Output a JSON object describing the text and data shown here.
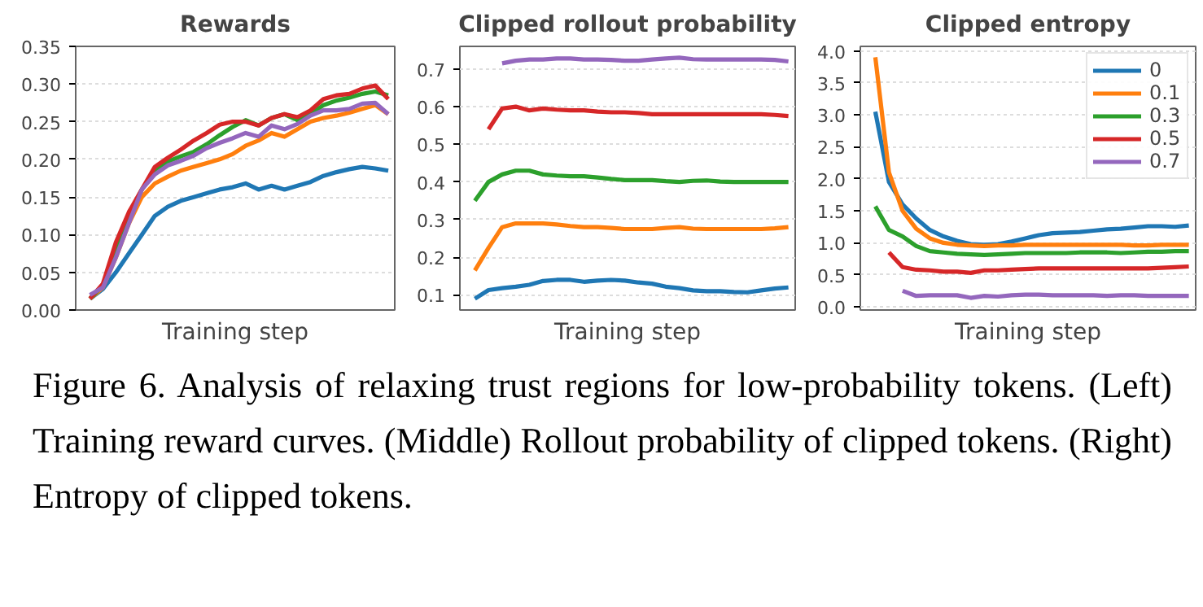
{
  "chart_data": [
    {
      "type": "line",
      "title": "Rewards",
      "xlabel": "Training step",
      "categories": [
        null,
        null,
        null,
        null,
        null,
        null,
        null,
        null,
        null,
        null,
        null,
        null,
        null,
        null,
        null,
        null,
        null,
        null,
        null,
        null,
        null,
        null,
        null,
        null
      ],
      "ylim": [
        0,
        0.35
      ],
      "yticks": [
        {
          "value": 0,
          "label": "0.00"
        },
        {
          "value": 0.05,
          "label": "0.05"
        },
        {
          "value": 0.1,
          "label": "0.10"
        },
        {
          "value": 0.15,
          "label": "0.15"
        },
        {
          "value": 0.2,
          "label": "0.20"
        },
        {
          "value": 0.25,
          "label": "0.25"
        },
        {
          "value": 0.3,
          "label": "0.30"
        },
        {
          "value": 0.35,
          "label": "0.35"
        }
      ],
      "tick_labels": "y",
      "grid": "y",
      "legend": false,
      "series": [
        {
          "color": "#1f77b4",
          "values": [
            0.015,
            0.028,
            0.05,
            0.075,
            0.1,
            0.125,
            0.137,
            0.145,
            0.15,
            0.155,
            0.16,
            0.163,
            0.168,
            0.16,
            0.165,
            0.16,
            0.165,
            0.17,
            0.178,
            0.183,
            0.187,
            0.19,
            0.188,
            0.185
          ]
        },
        {
          "color": "#ff7f0e",
          "values": [
            0.015,
            0.03,
            0.07,
            0.115,
            0.15,
            0.168,
            0.177,
            0.185,
            0.19,
            0.195,
            0.2,
            0.207,
            0.218,
            0.225,
            0.235,
            0.23,
            0.24,
            0.25,
            0.255,
            0.258,
            0.262,
            0.267,
            0.272,
            0.26
          ]
        },
        {
          "color": "#2ca02c",
          "values": [
            0.015,
            0.033,
            0.08,
            0.125,
            0.16,
            0.185,
            0.197,
            0.204,
            0.21,
            0.22,
            0.232,
            0.243,
            0.252,
            0.245,
            0.255,
            0.26,
            0.252,
            0.26,
            0.272,
            0.278,
            0.282,
            0.287,
            0.29,
            0.285
          ]
        },
        {
          "color": "#d62728",
          "values": [
            0.015,
            0.035,
            0.09,
            0.13,
            0.16,
            0.19,
            0.202,
            0.213,
            0.225,
            0.235,
            0.246,
            0.25,
            0.25,
            0.245,
            0.255,
            0.26,
            0.256,
            0.265,
            0.28,
            0.285,
            0.287,
            0.294,
            0.298,
            0.28
          ]
        },
        {
          "color": "#9467bd",
          "values": [
            0.02,
            0.03,
            0.07,
            0.115,
            0.16,
            0.18,
            0.192,
            0.198,
            0.205,
            0.215,
            0.222,
            0.228,
            0.235,
            0.23,
            0.245,
            0.24,
            0.247,
            0.258,
            0.265,
            0.265,
            0.267,
            0.274,
            0.275,
            0.26
          ]
        }
      ]
    },
    {
      "type": "line",
      "title": "Clipped rollout probability",
      "xlabel": "Training step",
      "categories": [
        null,
        null,
        null,
        null,
        null,
        null,
        null,
        null,
        null,
        null,
        null,
        null,
        null,
        null,
        null,
        null,
        null,
        null,
        null,
        null,
        null,
        null,
        null,
        null
      ],
      "ylim": [
        0.06,
        0.76
      ],
      "yticks": [
        0.1,
        0.2,
        0.3,
        0.4,
        0.5,
        0.6,
        0.7
      ],
      "tick_labels": "y",
      "grid": "y",
      "legend": false,
      "series": [
        {
          "color": "#1f77b4",
          "values": [
            0.09,
            0.113,
            0.118,
            0.122,
            0.127,
            0.137,
            0.14,
            0.14,
            0.135,
            0.138,
            0.14,
            0.138,
            0.133,
            0.13,
            0.122,
            0.118,
            0.112,
            0.11,
            0.11,
            0.108,
            0.107,
            0.112,
            0.117,
            0.12
          ]
        },
        {
          "color": "#ff7f0e",
          "values": [
            0.165,
            0.225,
            0.28,
            0.29,
            0.29,
            0.29,
            0.287,
            0.283,
            0.28,
            0.28,
            0.278,
            0.275,
            0.275,
            0.275,
            0.278,
            0.28,
            0.276,
            0.275,
            0.275,
            0.275,
            0.275,
            0.275,
            0.277,
            0.28
          ]
        },
        {
          "color": "#2ca02c",
          "values": [
            0.35,
            0.4,
            0.42,
            0.43,
            0.43,
            0.42,
            0.417,
            0.415,
            0.415,
            0.412,
            0.408,
            0.405,
            0.405,
            0.405,
            0.402,
            0.4,
            0.403,
            0.404,
            0.401,
            0.4,
            0.4,
            0.4,
            0.4,
            0.4
          ]
        },
        {
          "color": "#d62728",
          "values": [
            null,
            0.54,
            0.595,
            0.6,
            0.59,
            0.595,
            0.592,
            0.59,
            0.59,
            0.587,
            0.585,
            0.585,
            0.583,
            0.58,
            0.58,
            0.58,
            0.58,
            0.58,
            0.58,
            0.58,
            0.58,
            0.58,
            0.578,
            0.575
          ]
        },
        {
          "color": "#9467bd",
          "values": [
            null,
            null,
            0.715,
            0.722,
            0.725,
            0.725,
            0.728,
            0.728,
            0.725,
            0.725,
            0.724,
            0.722,
            0.722,
            0.725,
            0.728,
            0.73,
            0.726,
            0.725,
            0.725,
            0.725,
            0.725,
            0.725,
            0.724,
            0.72
          ]
        }
      ]
    },
    {
      "type": "line",
      "title": "Clipped entropy",
      "xlabel": "Training step",
      "categories": [
        null,
        null,
        null,
        null,
        null,
        null,
        null,
        null,
        null,
        null,
        null,
        null,
        null,
        null,
        null,
        null,
        null,
        null,
        null,
        null,
        null,
        null,
        null,
        null
      ],
      "ylim": [
        -0.05,
        4.07
      ],
      "yticks": [
        {
          "value": 0,
          "label": "0.0"
        },
        0.5,
        {
          "value": 1,
          "label": "1.0"
        },
        1.5,
        {
          "value": 2,
          "label": "2.0"
        },
        2.5,
        {
          "value": 3,
          "label": "3.0"
        },
        3.5,
        {
          "value": 4,
          "label": "4.0"
        }
      ],
      "tick_labels": "y",
      "grid": "y",
      "legend": "top right",
      "annotations": [
        "Figure 6. Analysis of relaxing trust regions for low-probability tokens. (Left) Training reward curves. (Middle) Rollout probability of clipped tokens. (Right) Entropy of clipped tokens."
      ],
      "series": [
        {
          "name": "0",
          "color": "#1f77b4",
          "values": [
            3.05,
            1.95,
            1.6,
            1.38,
            1.2,
            1.1,
            1.03,
            0.98,
            0.97,
            0.98,
            1.02,
            1.07,
            1.12,
            1.15,
            1.16,
            1.17,
            1.19,
            1.21,
            1.22,
            1.24,
            1.26,
            1.26,
            1.25,
            1.27
          ]
        },
        {
          "name": "0.1",
          "color": "#ff7f0e",
          "values": [
            3.9,
            2.1,
            1.5,
            1.22,
            1.07,
            1.0,
            0.97,
            0.96,
            0.95,
            0.96,
            0.96,
            0.97,
            0.97,
            0.97,
            0.97,
            0.97,
            0.97,
            0.97,
            0.97,
            0.96,
            0.96,
            0.97,
            0.97,
            0.97
          ]
        },
        {
          "name": "0.3",
          "color": "#2ca02c",
          "values": [
            1.57,
            1.2,
            1.1,
            0.95,
            0.87,
            0.85,
            0.83,
            0.82,
            0.81,
            0.82,
            0.83,
            0.84,
            0.84,
            0.84,
            0.84,
            0.85,
            0.85,
            0.85,
            0.84,
            0.85,
            0.86,
            0.86,
            0.87,
            0.87
          ]
        },
        {
          "name": "0.5",
          "color": "#d62728",
          "values": [
            null,
            0.85,
            0.62,
            0.58,
            0.57,
            0.55,
            0.55,
            0.53,
            0.57,
            0.57,
            0.58,
            0.59,
            0.6,
            0.6,
            0.6,
            0.6,
            0.6,
            0.6,
            0.6,
            0.6,
            0.6,
            0.61,
            0.62,
            0.63
          ]
        },
        {
          "name": "0.7",
          "color": "#9467bd",
          "values": [
            null,
            null,
            0.25,
            0.17,
            0.18,
            0.18,
            0.18,
            0.14,
            0.17,
            0.16,
            0.18,
            0.19,
            0.19,
            0.18,
            0.18,
            0.18,
            0.18,
            0.17,
            0.18,
            0.18,
            0.17,
            0.17,
            0.17,
            0.17
          ]
        }
      ]
    }
  ]
}
